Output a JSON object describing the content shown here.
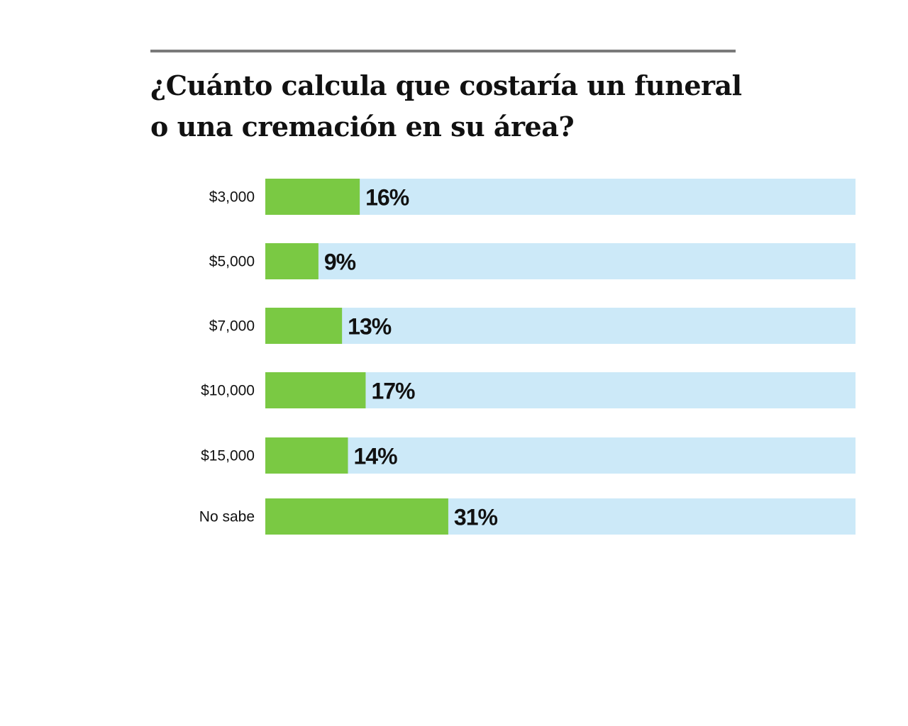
{
  "chart_data": {
    "type": "bar",
    "orientation": "horizontal",
    "title": "¿Cuánto calcula que costaría un funeral o una cremación en su área?",
    "categories": [
      "$3,000",
      "$5,000",
      "$7,000",
      "$10,000",
      "$15,000",
      "No sabe"
    ],
    "values": [
      16,
      9,
      13,
      17,
      14,
      31
    ],
    "value_labels": [
      "16%",
      "9%",
      "13%",
      "17%",
      "14%",
      "31%"
    ],
    "xlim": [
      0,
      100
    ],
    "unit": "%",
    "grid": false,
    "legend": "none",
    "colors": {
      "bar": "#7ac943",
      "track": "#cce9f8",
      "rule": "#7a7a7a",
      "text": "#111111"
    }
  }
}
